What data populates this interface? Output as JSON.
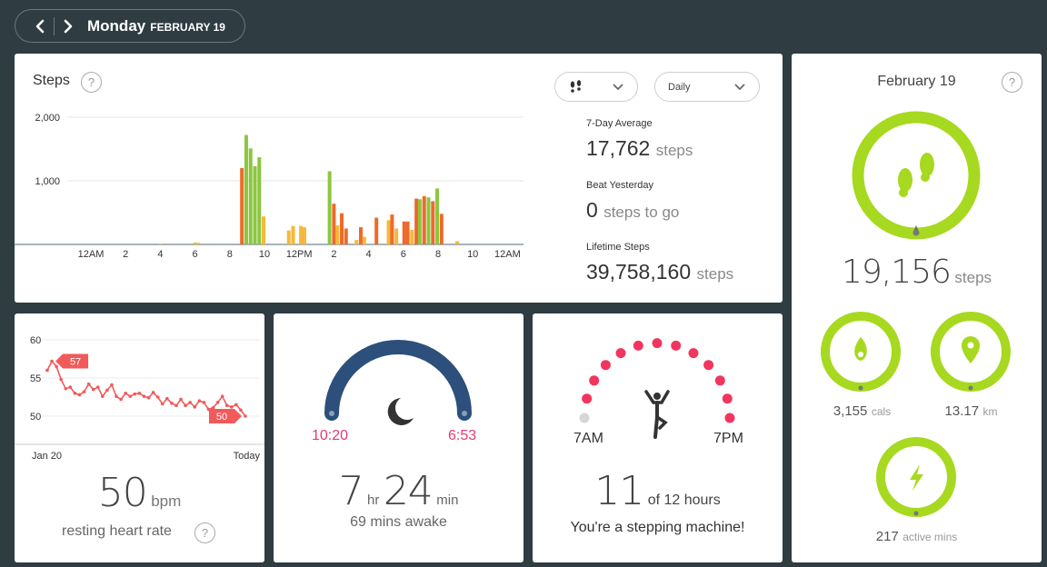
{
  "nav": {
    "day": "Monday",
    "date": "FEBRUARY 19"
  },
  "steps_card": {
    "title": "Steps",
    "help": "?",
    "period_dropdown": "Daily",
    "y_ticks": [
      "2,000",
      "1,000"
    ],
    "x_ticks": [
      "12AM",
      "2",
      "4",
      "6",
      "8",
      "10",
      "12PM",
      "2",
      "4",
      "6",
      "8",
      "10",
      "12AM"
    ],
    "stats": {
      "avg_label": "7-Day Average",
      "avg_value": "17,762",
      "avg_unit": "steps",
      "beat_label": "Beat Yesterday",
      "beat_value": "0",
      "beat_unit": "steps to go",
      "life_label": "Lifetime Steps",
      "life_value": "39,758,160",
      "life_unit": "steps"
    }
  },
  "chart_data": {
    "type": "bar",
    "title": "Steps",
    "ylim": [
      0,
      2000
    ],
    "y_ticks": [
      1000,
      2000
    ],
    "x_hours": [
      0,
      2,
      4,
      6,
      8,
      10,
      12,
      14,
      16,
      18,
      20,
      22,
      24
    ],
    "bars": [
      {
        "h": 4.0,
        "v": 10,
        "c": "#f5b83c"
      },
      {
        "h": 6.0,
        "v": 30,
        "c": "#f5b83c"
      },
      {
        "h": 6.2,
        "v": 25,
        "c": "#f5b83c"
      },
      {
        "h": 8.7,
        "v": 1200,
        "c": "#ee6a2a"
      },
      {
        "h": 8.95,
        "v": 1720,
        "c": "#8cc63f"
      },
      {
        "h": 9.2,
        "v": 1510,
        "c": "#8cc63f"
      },
      {
        "h": 9.45,
        "v": 1230,
        "c": "#8cc63f"
      },
      {
        "h": 9.7,
        "v": 1370,
        "c": "#8cc63f"
      },
      {
        "h": 9.95,
        "v": 440,
        "c": "#f5b83c"
      },
      {
        "h": 11.4,
        "v": 220,
        "c": "#f5b83c"
      },
      {
        "h": 11.65,
        "v": 290,
        "c": "#f5b83c"
      },
      {
        "h": 12.1,
        "v": 290,
        "c": "#f5b83c"
      },
      {
        "h": 12.3,
        "v": 270,
        "c": "#f5b83c"
      },
      {
        "h": 13.75,
        "v": 1150,
        "c": "#8cc63f"
      },
      {
        "h": 14.0,
        "v": 640,
        "c": "#ee6a2a"
      },
      {
        "h": 14.2,
        "v": 300,
        "c": "#f5b83c"
      },
      {
        "h": 14.45,
        "v": 490,
        "c": "#ee6a2a"
      },
      {
        "h": 14.7,
        "v": 250,
        "c": "#ee6a2a"
      },
      {
        "h": 15.3,
        "v": 70,
        "c": "#f5b83c"
      },
      {
        "h": 15.55,
        "v": 270,
        "c": "#ee6a2a"
      },
      {
        "h": 15.75,
        "v": 120,
        "c": "#f5b83c"
      },
      {
        "h": 16.45,
        "v": 420,
        "c": "#ee6a2a"
      },
      {
        "h": 17.15,
        "v": 380,
        "c": "#f5b83c"
      },
      {
        "h": 17.35,
        "v": 470,
        "c": "#ee6a2a"
      },
      {
        "h": 17.6,
        "v": 250,
        "c": "#f5b83c"
      },
      {
        "h": 18.05,
        "v": 360,
        "c": "#ee6a2a"
      },
      {
        "h": 18.25,
        "v": 360,
        "c": "#ee6a2a"
      },
      {
        "h": 18.5,
        "v": 230,
        "c": "#f5b83c"
      },
      {
        "h": 18.75,
        "v": 720,
        "c": "#ee6a2a"
      },
      {
        "h": 18.95,
        "v": 710,
        "c": "#8cc63f"
      },
      {
        "h": 19.2,
        "v": 760,
        "c": "#ee6a2a"
      },
      {
        "h": 19.45,
        "v": 740,
        "c": "#8cc63f"
      },
      {
        "h": 19.7,
        "v": 680,
        "c": "#ee6a2a"
      },
      {
        "h": 19.95,
        "v": 880,
        "c": "#8cc63f"
      },
      {
        "h": 20.2,
        "v": 480,
        "c": "#ee6a2a"
      },
      {
        "h": 21.1,
        "v": 50,
        "c": "#f5b83c"
      }
    ]
  },
  "heart": {
    "y_ticks": [
      "60",
      "55",
      "50"
    ],
    "x_start": "Jan 20",
    "x_end": "Today",
    "flag_start": "57",
    "flag_end": "50",
    "values": [
      56,
      57.2,
      56.5,
      54.8,
      53.6,
      53.8,
      53,
      52.8,
      53.2,
      54.2,
      53.5,
      53.8,
      52.6,
      53.4,
      54.1,
      52.6,
      52.2,
      53,
      52.6,
      52.9,
      53,
      52.6,
      52.4,
      53.1,
      52.5,
      51.6,
      52.3,
      51.7,
      51.4,
      52.2,
      51.4,
      51.8,
      51.2,
      52,
      51.8,
      50.9,
      51.1,
      51.8,
      52.6,
      51.4,
      51.2,
      51.5,
      50.8,
      50
    ],
    "value": "50",
    "unit": "bpm",
    "label": "resting heart rate",
    "help": "?"
  },
  "sleep": {
    "start": "10:20",
    "end": "6:53",
    "hours": "7",
    "hours_unit": "hr",
    "mins": "24",
    "mins_unit": "min",
    "awake": "69 mins awake"
  },
  "hourly": {
    "start": "7AM",
    "end": "7PM",
    "done": 11,
    "total_hours": 12,
    "value": "11",
    "of_text": "of 12 hours",
    "message": "You're a stepping machine!"
  },
  "today": {
    "date": "February 19",
    "help": "?",
    "steps_value": "19,156",
    "steps_unit": "steps",
    "cals_value": "3,155",
    "cals_unit": "cals",
    "km_value": "13.17",
    "km_unit": "km",
    "active_value": "217",
    "active_unit": "active mins",
    "ring_color": "#a6d91f",
    "icons": [
      "footsteps-icon",
      "flame-icon",
      "location-pin-icon",
      "lightning-icon"
    ]
  }
}
